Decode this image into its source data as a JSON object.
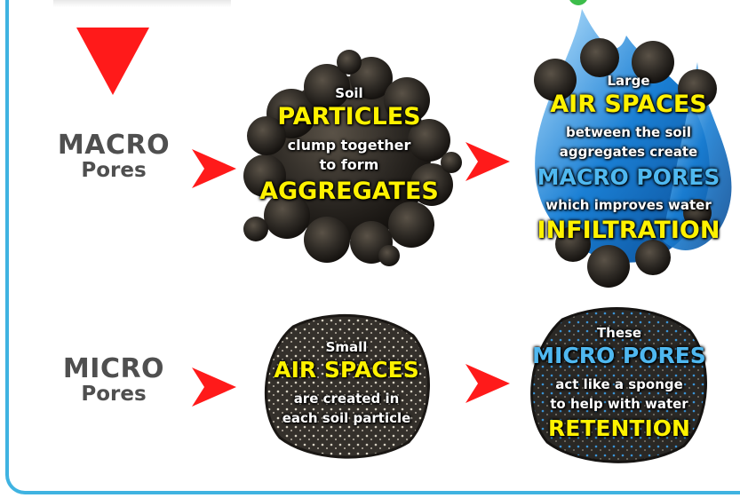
{
  "macro": {
    "label_big": "MACRO",
    "label_small": "Pores",
    "particles": {
      "line1": "Soil",
      "line2": "PARTICLES",
      "line3": "clump together",
      "line4": "to form",
      "line5": "AGGREGATES"
    },
    "air": {
      "line1": "Large",
      "line2": "AIR SPACES",
      "line3": "between the soil",
      "line4": "aggregates create",
      "line5": "MACRO PORES",
      "line6": "which improves water",
      "line7": "INFILTRATION"
    }
  },
  "micro": {
    "label_big": "MICRO",
    "label_small": "Pores",
    "small_air": {
      "line1": "Small",
      "line2": "AIR SPACES",
      "line3": "are created in",
      "line4": "each soil particle"
    },
    "pores": {
      "line1": "These",
      "line2": "MICRO PORES",
      "line3": "act like a sponge",
      "line4": "to help with water",
      "line5": "RETENTION"
    }
  },
  "colors": {
    "arrow": "#ff1a1a",
    "frame": "#3fb3e1",
    "highlight_yellow": "#fff200",
    "highlight_blue": "#4fb8f0",
    "soil": "#2e2a25",
    "water": "#1a7fd4"
  }
}
